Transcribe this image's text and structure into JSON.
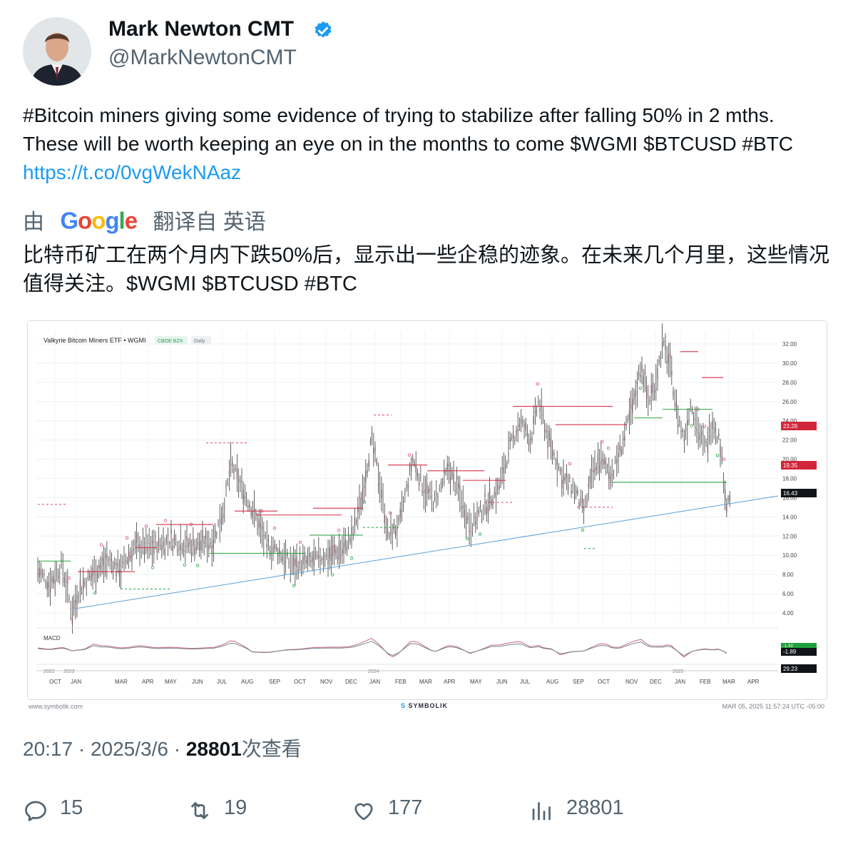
{
  "author": {
    "name": "Mark Newton CMT",
    "handle": "@MarkNewtonCMT",
    "verified_color": "#1d9bf0"
  },
  "tweet": {
    "text": "#Bitcoin miners giving some evidence of trying to stabilize after falling 50% in 2 mths.  These will be worth keeping an eye on in the months to come $WGMI $BTCUSD #BTC ",
    "link": "https://t.co/0vgWekNAaz"
  },
  "translation": {
    "prefix": "由",
    "provider": "Google",
    "label": "翻译自 英语",
    "text": "比特币矿工在两个月内下跌50%后，显示出一些企稳的迹象。在未来几个月里，这些情况值得关注。$WGMI $BTCUSD #BTC"
  },
  "chart": {
    "title": "Valkyrie Bitcoin Miners ETF • WGMI",
    "exchange_tag": "CBOE BZX",
    "interval_tag": "Daily",
    "macd_label": "MACD",
    "y_ticks": [
      "32.00",
      "30.00",
      "28.00",
      "26.00",
      "24.00",
      "22.00",
      "20.00",
      "18.00",
      "16.00",
      "14.00",
      "12.00",
      "10.00",
      "8.00",
      "6.00",
      "4.00"
    ],
    "price_tags": [
      {
        "value": "23.28",
        "color": "#d1263a"
      },
      {
        "value": "19.35",
        "color": "#d1263a"
      },
      {
        "value": "16.43",
        "color": "#111419"
      },
      {
        "value": "-1.89",
        "color": "#111419"
      },
      {
        "value": "29.23",
        "color": "#111419"
      }
    ],
    "macd_extra_tag": {
      "value": "-1.43",
      "color": "#20a03c"
    },
    "year_labels": [
      "2022",
      "2023",
      "2024",
      "2025"
    ],
    "month_labels": [
      "OCT",
      "JAN",
      "MAR",
      "APR",
      "MAY",
      "JUN",
      "JUL",
      "AUG",
      "SEP",
      "OCT",
      "NOV",
      "DEC",
      "JAN",
      "FEB",
      "MAR",
      "APR",
      "MAY",
      "JUN",
      "JUL",
      "AUG",
      "SEP",
      "OCT",
      "NOV",
      "DEC",
      "JAN",
      "FEB",
      "MAR",
      "APR"
    ],
    "footer_left": "www.symbolik.com",
    "footer_brand": "SYMBOLIK",
    "footer_right": "MAR 05, 2025 11:57:24 UTC -05:00",
    "trend_color": "#5aa0d8",
    "candle_color": "#3a3a3a"
  },
  "meta": {
    "time": "20:17",
    "date": "2025/3/6",
    "views_count": "28801",
    "views_label": "次查看"
  },
  "actions": {
    "replies": "15",
    "reposts": "19",
    "likes": "177",
    "views": "28801"
  }
}
